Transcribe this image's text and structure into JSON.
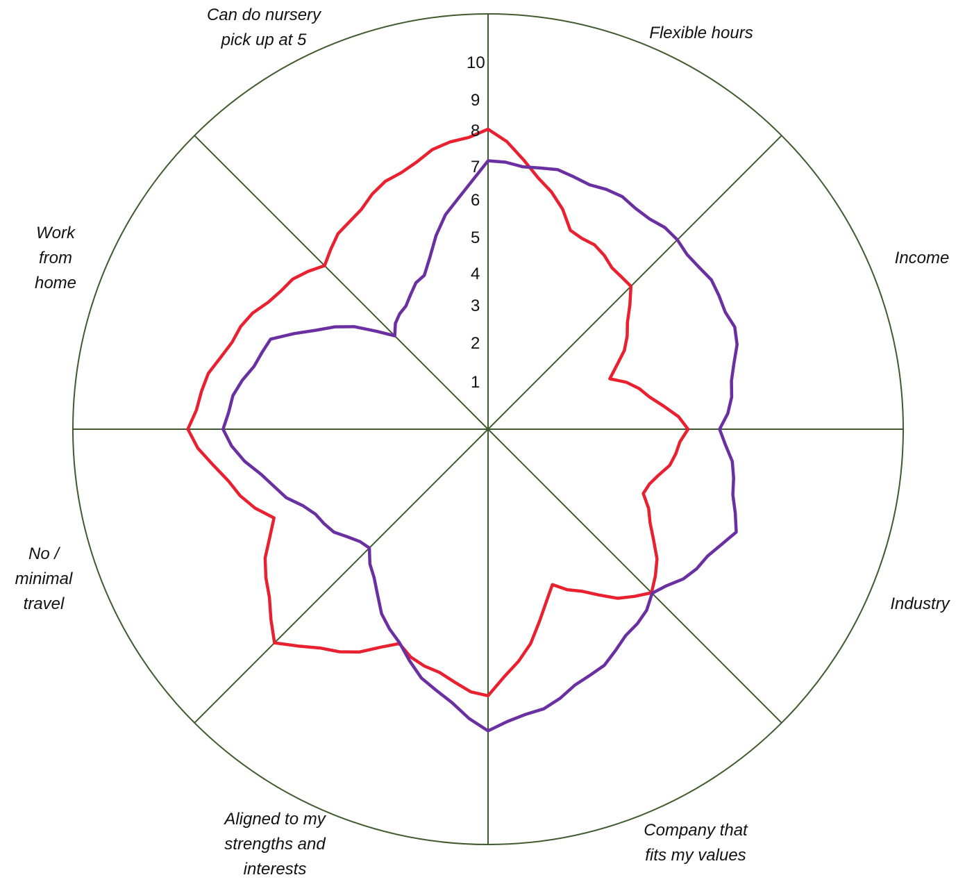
{
  "chart_data": {
    "type": "radar",
    "title": "",
    "categories": [
      "Can do nursery pick up at 5",
      "Flexible hours",
      "Income",
      "Industry",
      "Company that fits my values",
      "Aligned to my strengths and interests",
      "No / minimal travel",
      "Work from home"
    ],
    "category_lines": [
      [
        "Can do nursery",
        "pick up at 5"
      ],
      [
        "Flexible hours"
      ],
      [
        "Income"
      ],
      [
        "Industry"
      ],
      [
        "Company that",
        "fits my values"
      ],
      [
        "Aligned to my",
        "strengths and",
        "interests"
      ],
      [
        "No /",
        "minimal",
        "travel"
      ],
      [
        "Work",
        "from",
        "home"
      ]
    ],
    "scale": {
      "min": 0,
      "max": 10,
      "tick_labels": [
        "1",
        "2",
        "3",
        "4",
        "5",
        "6",
        "7",
        "8",
        "9",
        "10"
      ]
    },
    "series": [
      {
        "color": "#e8202f",
        "values": [
          9,
          6,
          6,
          4,
          7,
          8,
          9,
          7
        ],
        "path_values": [
          9,
          6.5,
          6,
          4,
          6,
          5,
          7,
          5,
          8,
          7,
          9,
          7,
          9,
          8,
          7,
          8
        ]
      },
      {
        "color": "#6a2fa0",
        "values": [
          8,
          8,
          7,
          7,
          9,
          5,
          8,
          4
        ],
        "path_values": [
          8,
          8,
          8,
          8,
          7,
          8,
          7,
          8,
          9,
          7,
          5,
          6,
          8,
          7,
          4,
          5
        ]
      }
    ],
    "grid": true
  }
}
